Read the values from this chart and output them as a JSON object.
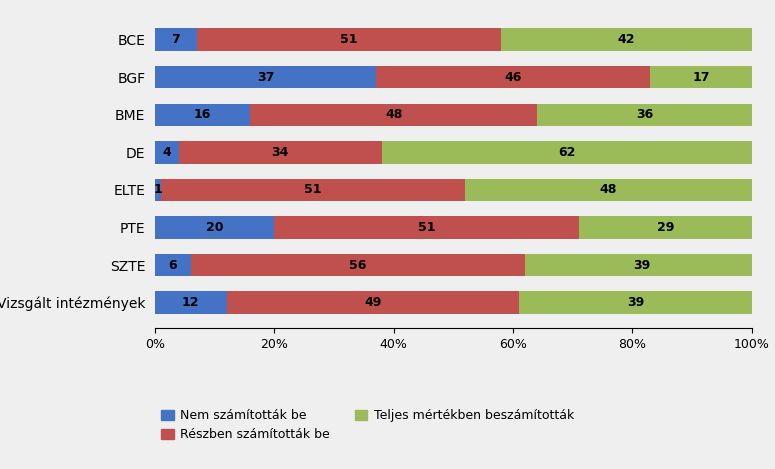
{
  "categories": [
    "BCE",
    "BGF",
    "BME",
    "DE",
    "ELTE",
    "PTE",
    "SZTE",
    "Vizsgált intézmények"
  ],
  "nem": [
    7,
    37,
    16,
    4,
    1,
    20,
    6,
    12
  ],
  "reszben": [
    51,
    46,
    48,
    34,
    51,
    51,
    56,
    49
  ],
  "teljes": [
    42,
    17,
    36,
    62,
    48,
    29,
    39,
    39
  ],
  "color_nem": "#4472C4",
  "color_reszben": "#C0504D",
  "color_teljes": "#9BBB59",
  "legend_nem": "Nem számították be",
  "legend_reszben": "Részben számították be",
  "legend_teljes": "Teljes mértékben beszámították",
  "background_color": "#EFEFEF",
  "figsize": [
    7.75,
    4.69
  ],
  "dpi": 100,
  "bar_height": 0.6,
  "label_fontsize": 9,
  "tick_fontsize": 9,
  "legend_fontsize": 9,
  "ytick_fontsize": 10
}
